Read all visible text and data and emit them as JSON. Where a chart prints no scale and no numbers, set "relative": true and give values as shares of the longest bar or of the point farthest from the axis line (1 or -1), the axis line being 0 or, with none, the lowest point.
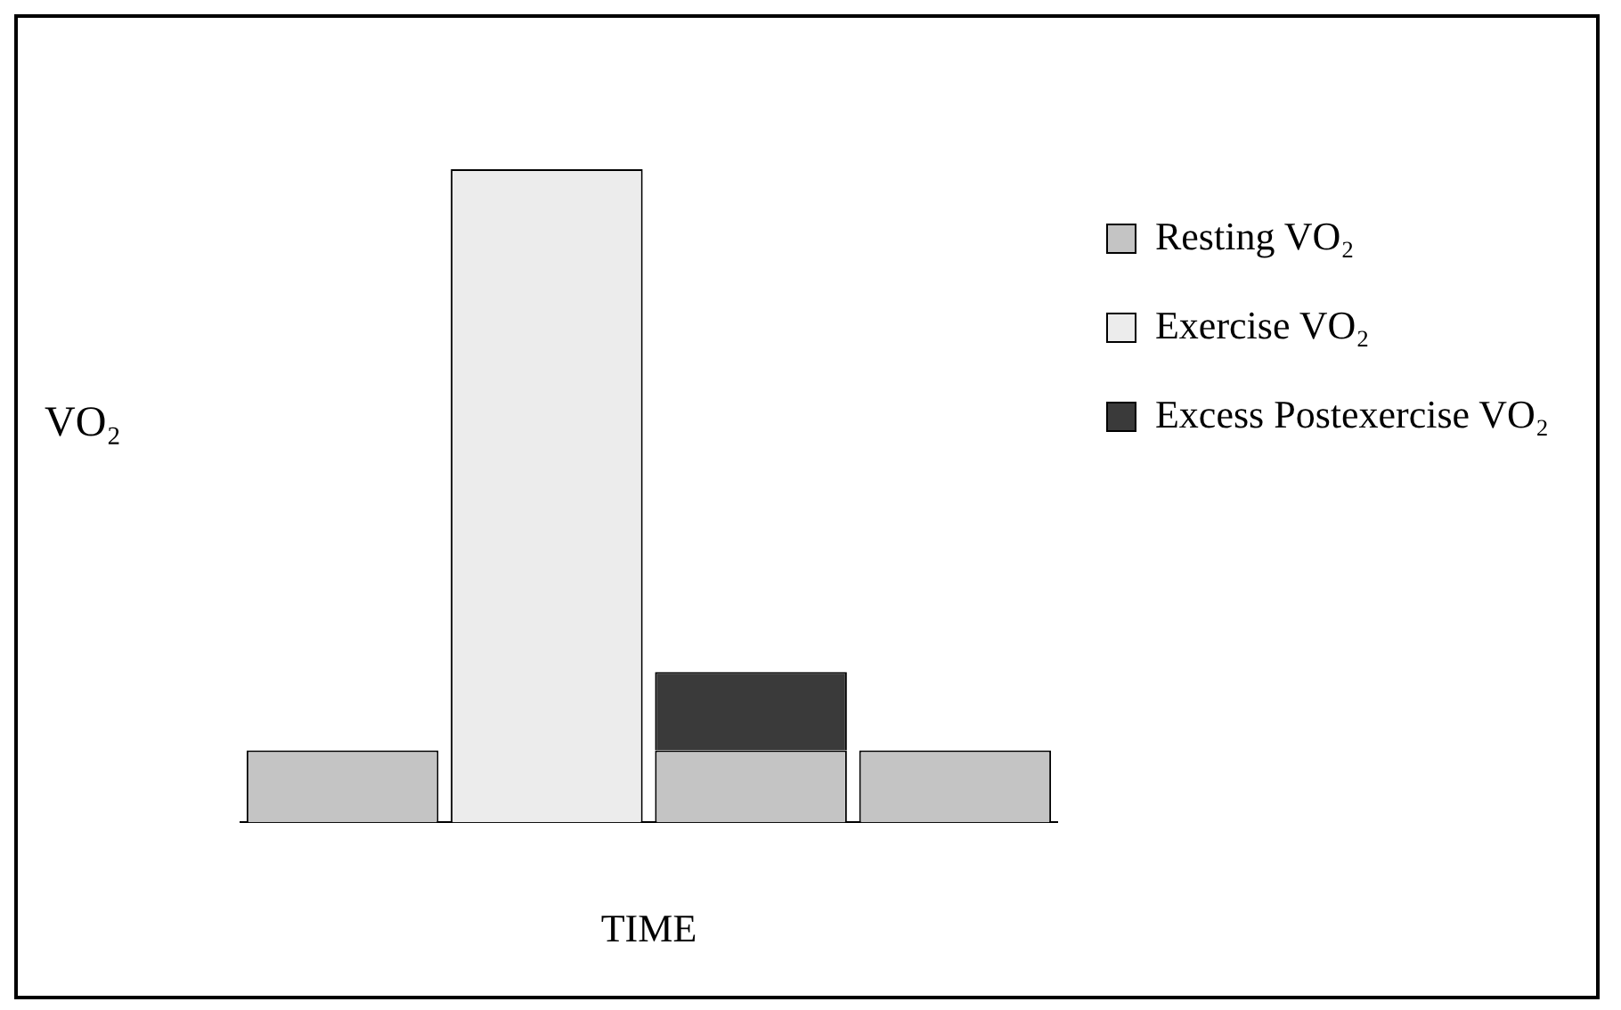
{
  "chart_data": {
    "type": "bar",
    "stacked": true,
    "relative": true,
    "xlabel": "TIME",
    "ylabel": "VO₂",
    "legend": "top right",
    "categories": [
      null,
      null,
      null,
      null
    ],
    "series": [
      {
        "name": "Resting VO₂",
        "color": "#c4c4c4",
        "values": [
          0.11,
          null,
          0.11,
          0.11
        ]
      },
      {
        "name": "Exercise VO₂",
        "color": "#ececec",
        "values": [
          null,
          1,
          null,
          null
        ]
      },
      {
        "name": "Excess Postexercise VO₂",
        "color": "#3a3a3a",
        "values": [
          null,
          null,
          0.12,
          null
        ]
      }
    ]
  }
}
